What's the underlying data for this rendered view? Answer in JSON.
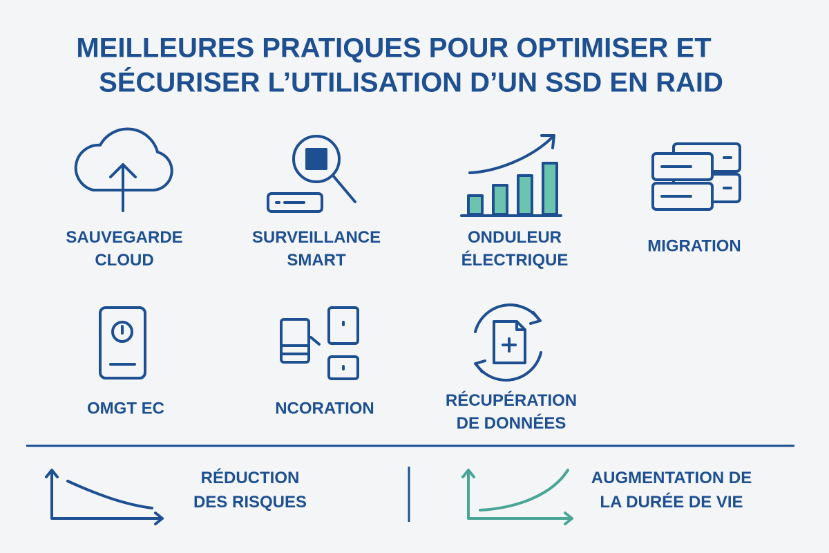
{
  "title": [
    "MEILLEURES PRATIQUES POUR OPTIMISER ET",
    "SÉCURISER L’UTILISATION D’UN SSD EN RAID"
  ],
  "items": [
    {
      "label": [
        "SAUVEGARDE",
        "CLOUD"
      ]
    },
    {
      "label": [
        "SURVEILLANCE",
        "SMART"
      ]
    },
    {
      "label": [
        "ONDULEUR",
        "ÉLECTRIQUE"
      ]
    },
    {
      "label": [
        "MIGRATION"
      ]
    },
    {
      "label": [
        "OMGT EC"
      ]
    },
    {
      "label": [
        "NCORATION"
      ]
    },
    {
      "label": [
        "RÉCUPÉRATION",
        "DE DONNÉES"
      ]
    }
  ],
  "footer": [
    {
      "label": [
        "RÉDUCTION",
        "DES RISQUES"
      ]
    },
    {
      "label": [
        "AUGMENTATION DE",
        "LA DURÉE DE VIE"
      ]
    }
  ]
}
